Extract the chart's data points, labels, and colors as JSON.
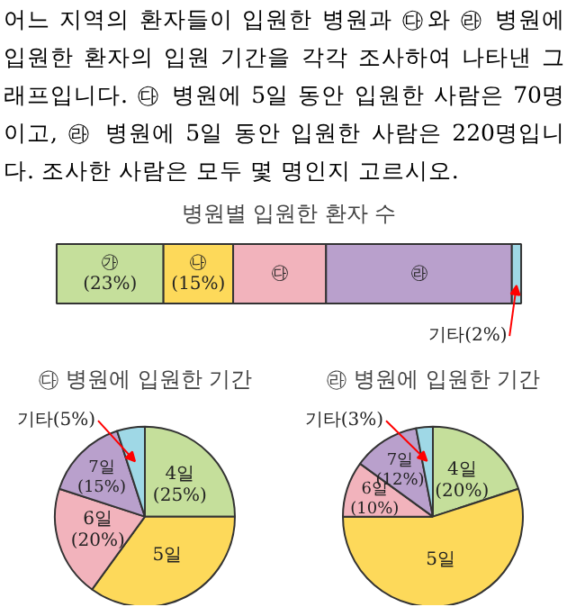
{
  "chart_data": [
    {
      "type": "bar",
      "title": "병원별 입원한 환자 수",
      "annotations": [
        "어느 지역의 환자들이 입원한 병원과 ㉰와 ㉱ 병원에 입원한 환자의 입원 기간을 각각 조사하여 나타낸 그래프입니다. ㉰ 병원에 5일 동안 입원한 사람은 70명이고, ㉱ 병원에 5일 동안 입원한 사람은 220명입니다. 조사한 사람은 모두 몇 명인지 고르시오."
      ],
      "orientation": "horizontal",
      "stacked": true,
      "categories": [
        null
      ],
      "series": [
        {
          "name": "㉮",
          "color": "#c5df9b",
          "values": [
            23
          ],
          "value_labels": [
            "(23%)"
          ]
        },
        {
          "name": "㉯",
          "color": "#fdd95a",
          "values": [
            15
          ],
          "value_labels": [
            "(15%)"
          ]
        },
        {
          "name": "㉰",
          "color": "#f2b3bc",
          "values": [
            20
          ],
          "value_labels": [
            null
          ]
        },
        {
          "name": "㉱",
          "color": "#b9a0cc",
          "values": [
            40
          ],
          "value_labels": [
            null
          ]
        },
        {
          "name": "기타",
          "color": "#9fd8e6",
          "values": [
            2
          ],
          "value_labels": [
            "(2%)"
          ]
        }
      ]
    },
    {
      "type": "pie",
      "title": "㉰ 병원에 입원한 기간",
      "categories": [
        "4일",
        "5일",
        "6일",
        "7일",
        "기타"
      ],
      "values": [
        25,
        35,
        20,
        15,
        5
      ],
      "value_labels": [
        "(25%)",
        null,
        "(20%)",
        "(15%)",
        "(5%)"
      ],
      "colors": [
        "#c5df9b",
        "#fdd95a",
        "#f2b3bc",
        "#b9a0cc",
        "#9fd8e6"
      ]
    },
    {
      "type": "pie",
      "title": "㉱ 병원에 입원한 기간",
      "categories": [
        "4일",
        "5일",
        "6일",
        "7일",
        "기타"
      ],
      "values": [
        20,
        55,
        10,
        12,
        3
      ],
      "value_labels": [
        "(20%)",
        null,
        "(10%)",
        "(12%)",
        "(3%)"
      ],
      "colors": [
        "#c5df9b",
        "#fdd95a",
        "#f2b3bc",
        "#b9a0cc",
        "#9fd8e6"
      ]
    }
  ]
}
